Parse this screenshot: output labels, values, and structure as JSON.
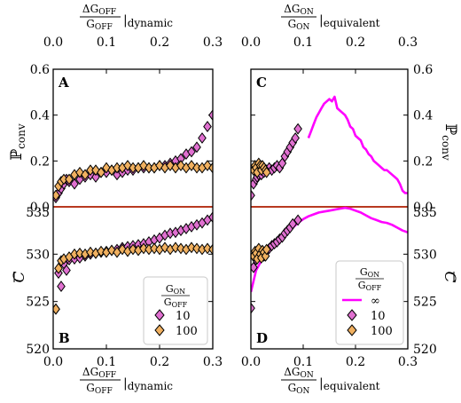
{
  "figure": {
    "top_xlabel_left": {
      "num": "ΔG",
      "num_sub": "OFF",
      "den": "G",
      "den_sub": "OFF",
      "bar": "|",
      "suffix": "dynamic"
    },
    "top_xlabel_right": {
      "num": "ΔG",
      "num_sub": "ON",
      "den": "G",
      "den_sub": "ON",
      "bar": "|",
      "suffix": "equivalent"
    },
    "bottom_xlabel_left": {
      "num": "ΔG",
      "num_sub": "OFF",
      "den": "G",
      "den_sub": "OFF",
      "bar": "|",
      "suffix": "dynamic"
    },
    "bottom_xlabel_right": {
      "num": "ΔG",
      "num_sub": "ON",
      "den": "G",
      "den_sub": "ON",
      "bar": "|",
      "suffix": "equivalent"
    },
    "ylabel_top": "ℙ",
    "ylabel_top_sub": "conv",
    "ylabel_bottom": "C",
    "panel_letters": [
      "A",
      "B",
      "C",
      "D"
    ],
    "x_ticks": [
      "0.0",
      "0.1",
      "0.2",
      "0.3"
    ],
    "y_ticks_top": [
      "0.0",
      "0.2",
      "0.4",
      "0.6"
    ],
    "y_ticks_bottom": [
      "520",
      "525",
      "530",
      "535"
    ],
    "legend_left": {
      "title_num": "G",
      "title_num_sub": "ON",
      "title_den": "G",
      "title_den_sub": "OFF",
      "entries": [
        "10",
        "100"
      ]
    },
    "legend_right": {
      "title_num": "G",
      "title_num_sub": "ON",
      "title_den": "G",
      "title_den_sub": "OFF",
      "entries": [
        "∞",
        "10",
        "100"
      ]
    }
  },
  "colors": {
    "ratio_10": "#e070d0",
    "ratio_100": "#f0b060",
    "ratio_inf": "#ff00ff",
    "ref_line": "#cc2200",
    "zero_line": "#000000"
  },
  "chart_data": [
    {
      "panel": "A",
      "type": "scatter",
      "xlim": [
        0,
        0.3
      ],
      "ylim": [
        0,
        0.6
      ],
      "series": [
        {
          "name": "10",
          "marker": "diamond",
          "x": [
            0.005,
            0.01,
            0.015,
            0.02,
            0.025,
            0.03,
            0.04,
            0.05,
            0.06,
            0.07,
            0.08,
            0.09,
            0.1,
            0.11,
            0.12,
            0.13,
            0.14,
            0.15,
            0.16,
            0.17,
            0.18,
            0.19,
            0.2,
            0.21,
            0.22,
            0.23,
            0.24,
            0.25,
            0.26,
            0.27,
            0.28,
            0.29,
            0.3
          ],
          "y": [
            0.04,
            0.06,
            0.08,
            0.1,
            0.12,
            0.11,
            0.1,
            0.12,
            0.13,
            0.14,
            0.13,
            0.15,
            0.15,
            0.16,
            0.14,
            0.15,
            0.16,
            0.16,
            0.17,
            0.17,
            0.17,
            0.17,
            0.18,
            0.18,
            0.19,
            0.2,
            0.21,
            0.23,
            0.24,
            0.26,
            0.3,
            0.35,
            0.4
          ]
        },
        {
          "name": "100",
          "marker": "diamond",
          "x": [
            0.005,
            0.01,
            0.015,
            0.02,
            0.03,
            0.04,
            0.05,
            0.06,
            0.07,
            0.08,
            0.09,
            0.1,
            0.11,
            0.12,
            0.13,
            0.14,
            0.15,
            0.16,
            0.17,
            0.18,
            0.19,
            0.2,
            0.21,
            0.22,
            0.23,
            0.24,
            0.25,
            0.26,
            0.27,
            0.28,
            0.29,
            0.3
          ],
          "y": [
            0.05,
            0.09,
            0.11,
            0.12,
            0.12,
            0.14,
            0.15,
            0.14,
            0.16,
            0.16,
            0.15,
            0.17,
            0.16,
            0.17,
            0.17,
            0.18,
            0.17,
            0.17,
            0.18,
            0.17,
            0.17,
            0.18,
            0.17,
            0.18,
            0.17,
            0.18,
            0.17,
            0.18,
            0.17,
            0.17,
            0.18,
            0.17
          ]
        }
      ],
      "reference_lines": [
        {
          "axis": "y",
          "value": 0
        }
      ]
    },
    {
      "panel": "B",
      "type": "scatter",
      "xlim": [
        0,
        0.3
      ],
      "ylim": [
        520,
        535
      ],
      "series": [
        {
          "name": "10",
          "marker": "diamond",
          "x": [
            0.005,
            0.01,
            0.015,
            0.02,
            0.025,
            0.03,
            0.04,
            0.05,
            0.06,
            0.07,
            0.08,
            0.09,
            0.1,
            0.11,
            0.12,
            0.13,
            0.14,
            0.15,
            0.16,
            0.17,
            0.18,
            0.19,
            0.2,
            0.21,
            0.22,
            0.23,
            0.24,
            0.25,
            0.26,
            0.27,
            0.28,
            0.29,
            0.3
          ],
          "y": [
            524.2,
            528.0,
            526.6,
            529.0,
            528.3,
            529.4,
            529.5,
            529.6,
            529.8,
            530.0,
            530.1,
            530.2,
            530.3,
            530.4,
            530.5,
            530.7,
            530.8,
            530.9,
            531.0,
            531.1,
            531.3,
            531.5,
            531.7,
            532.0,
            532.2,
            532.3,
            532.5,
            532.7,
            532.9,
            533.1,
            533.3,
            533.6,
            533.9
          ]
        },
        {
          "name": "100",
          "marker": "diamond",
          "x": [
            0.005,
            0.01,
            0.015,
            0.02,
            0.03,
            0.04,
            0.05,
            0.06,
            0.07,
            0.08,
            0.09,
            0.1,
            0.11,
            0.12,
            0.13,
            0.14,
            0.15,
            0.16,
            0.17,
            0.18,
            0.19,
            0.2,
            0.21,
            0.22,
            0.23,
            0.24,
            0.25,
            0.26,
            0.27,
            0.28,
            0.29,
            0.3
          ],
          "y": [
            524.2,
            528.5,
            529.3,
            529.5,
            529.7,
            530.0,
            530.1,
            530.0,
            530.2,
            530.1,
            530.3,
            530.2,
            530.4,
            530.2,
            530.5,
            530.3,
            530.5,
            530.4,
            530.6,
            530.5,
            530.6,
            530.5,
            530.7,
            530.5,
            530.7,
            530.6,
            530.5,
            530.7,
            530.6,
            530.5,
            530.6,
            530.5
          ]
        }
      ],
      "reference_lines": [
        {
          "axis": "y",
          "value": 535
        }
      ]
    },
    {
      "panel": "C",
      "type": "scatter",
      "xlim": [
        0,
        0.3
      ],
      "ylim": [
        0,
        0.6
      ],
      "series": [
        {
          "name": "∞",
          "marker": "line",
          "x": [
            0.11,
            0.115,
            0.12,
            0.125,
            0.13,
            0.135,
            0.14,
            0.145,
            0.15,
            0.155,
            0.16,
            0.165,
            0.17,
            0.175,
            0.18,
            0.185,
            0.19,
            0.195,
            0.2,
            0.205,
            0.21,
            0.215,
            0.22,
            0.225,
            0.23,
            0.235,
            0.24,
            0.245,
            0.25,
            0.255,
            0.26,
            0.265,
            0.27,
            0.275,
            0.28,
            0.285,
            0.29,
            0.295,
            0.3
          ],
          "y": [
            0.3,
            0.33,
            0.36,
            0.39,
            0.41,
            0.43,
            0.45,
            0.46,
            0.47,
            0.46,
            0.48,
            0.43,
            0.42,
            0.41,
            0.4,
            0.38,
            0.35,
            0.34,
            0.31,
            0.3,
            0.29,
            0.26,
            0.25,
            0.23,
            0.22,
            0.2,
            0.19,
            0.18,
            0.17,
            0.16,
            0.16,
            0.15,
            0.14,
            0.13,
            0.12,
            0.1,
            0.07,
            0.06,
            0.06
          ]
        },
        {
          "name": "10",
          "marker": "diamond",
          "x": [
            0.0,
            0.005,
            0.01,
            0.012,
            0.015,
            0.018,
            0.02,
            0.022,
            0.025,
            0.03,
            0.035,
            0.04,
            0.045,
            0.05,
            0.055,
            0.06,
            0.065,
            0.07,
            0.075,
            0.08,
            0.085,
            0.09
          ],
          "y": [
            0.05,
            0.1,
            0.12,
            0.13,
            0.14,
            0.15,
            0.14,
            0.16,
            0.15,
            0.16,
            0.17,
            0.16,
            0.17,
            0.18,
            0.17,
            0.19,
            0.22,
            0.24,
            0.26,
            0.28,
            0.3,
            0.34
          ]
        },
        {
          "name": "100",
          "marker": "diamond",
          "x": [
            0.005,
            0.008,
            0.01,
            0.012,
            0.015,
            0.018,
            0.02,
            0.022,
            0.025,
            0.028,
            0.03
          ],
          "y": [
            0.16,
            0.18,
            0.17,
            0.15,
            0.19,
            0.18,
            0.16,
            0.18,
            0.17,
            0.16,
            0.15
          ]
        }
      ],
      "reference_lines": [
        {
          "axis": "y",
          "value": 0
        }
      ]
    },
    {
      "panel": "D",
      "type": "scatter",
      "xlim": [
        0,
        0.3
      ],
      "ylim": [
        520,
        535
      ],
      "series": [
        {
          "name": "∞",
          "marker": "line",
          "x": [
            0.0,
            0.01,
            0.02,
            0.03,
            0.04,
            0.05,
            0.06,
            0.07,
            0.08,
            0.09,
            0.1,
            0.11,
            0.12,
            0.13,
            0.14,
            0.15,
            0.16,
            0.17,
            0.18,
            0.19,
            0.2,
            0.21,
            0.22,
            0.23,
            0.24,
            0.25,
            0.26,
            0.27,
            0.28,
            0.29,
            0.3
          ],
          "y": [
            526.0,
            528.3,
            529.3,
            529.9,
            530.6,
            531.2,
            531.8,
            532.3,
            532.8,
            533.3,
            533.7,
            534.0,
            534.2,
            534.4,
            534.5,
            534.6,
            534.7,
            534.8,
            534.9,
            534.8,
            534.6,
            534.4,
            534.1,
            533.8,
            533.6,
            533.4,
            533.3,
            533.1,
            532.8,
            532.5,
            532.3
          ]
        },
        {
          "name": "10",
          "marker": "diamond",
          "x": [
            0.0,
            0.005,
            0.01,
            0.012,
            0.015,
            0.02,
            0.025,
            0.03,
            0.035,
            0.04,
            0.045,
            0.05,
            0.055,
            0.06,
            0.065,
            0.07,
            0.075,
            0.08,
            0.09
          ],
          "y": [
            524.3,
            528.6,
            529.4,
            530.0,
            530.4,
            530.1,
            529.8,
            530.3,
            530.6,
            530.9,
            531.1,
            531.3,
            531.6,
            531.8,
            532.2,
            532.5,
            532.8,
            533.2,
            533.6
          ]
        },
        {
          "name": "100",
          "marker": "diamond",
          "x": [
            0.005,
            0.008,
            0.01,
            0.012,
            0.015,
            0.018,
            0.02,
            0.022,
            0.025,
            0.028,
            0.03
          ],
          "y": [
            529.8,
            530.3,
            530.1,
            529.5,
            530.6,
            530.0,
            529.6,
            530.4,
            530.2,
            529.8,
            530.5
          ]
        }
      ],
      "reference_lines": [
        {
          "axis": "y",
          "value": 535
        }
      ]
    }
  ]
}
